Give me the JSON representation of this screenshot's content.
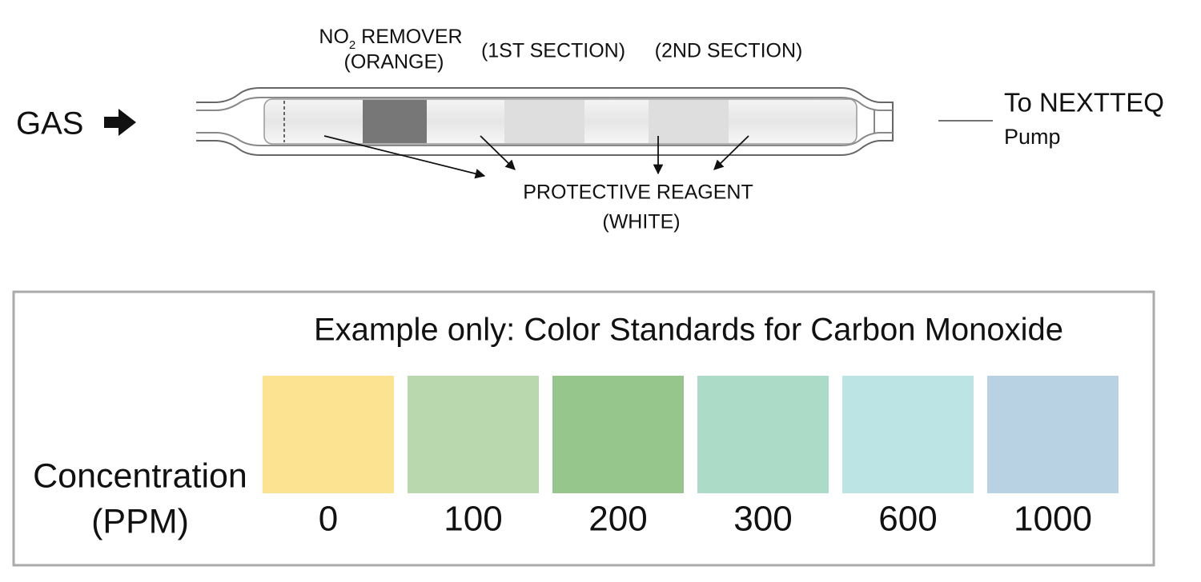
{
  "tube": {
    "gas_label": "GAS",
    "no2_remover": {
      "prefix": "NO",
      "subscript": "2",
      "suffix": " REMOVER",
      "color_note": "(ORANGE)"
    },
    "first_section": "(1ST SECTION)",
    "second_section": "(2ND SECTION)",
    "protective_reagent": {
      "label": "PROTECTIVE REAGENT",
      "color_note": "(WHITE)"
    },
    "outlet": {
      "label": "To NEXTTEQ",
      "sublabel": "Pump"
    }
  },
  "color_standards": {
    "title": "Example only: Color Standards for Carbon Monoxide",
    "axis_label": {
      "line1": "Concentration",
      "line2": "(PPM)"
    },
    "swatches": [
      {
        "value": 0,
        "color": "#fbe391"
      },
      {
        "value": 100,
        "color": "#b9d8ae"
      },
      {
        "value": 200,
        "color": "#96c68b"
      },
      {
        "value": 300,
        "color": "#acdbc8"
      },
      {
        "value": 600,
        "color": "#bce4e4"
      },
      {
        "value": 1000,
        "color": "#b8d2e4"
      }
    ]
  }
}
